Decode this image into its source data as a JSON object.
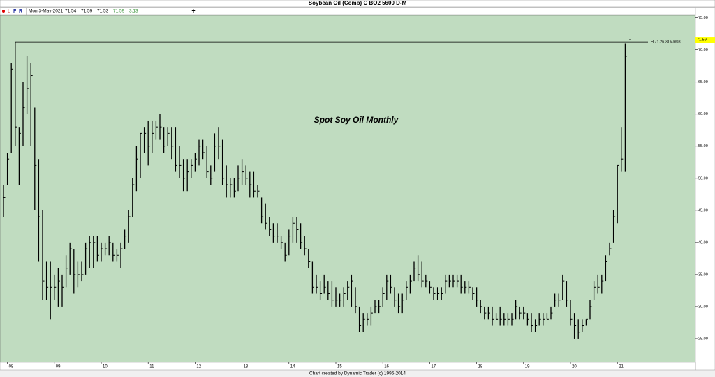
{
  "header": {
    "title": "Soybean Oil (Comb) C BO2 5600 D-M"
  },
  "toolbar": {
    "buttons": [
      "L",
      "F",
      "R"
    ],
    "date": "Mon 3-May-2021",
    "quote": [
      "71.54",
      "71.59",
      "71.53",
      "71.59",
      "3.13"
    ],
    "add": "+"
  },
  "footer": "Chart created by Dynamic Trader  (c) 1996-2014",
  "chart_data": {
    "type": "ohlc",
    "annotation": "Spot Soy Oil Monthly",
    "color": "#000000",
    "background": "#c0dcc0",
    "ylim": [
      21.3,
      75.4
    ],
    "yticks": [
      {
        "value": 25,
        "label": "25.00"
      },
      {
        "value": 30,
        "label": "30.00"
      },
      {
        "value": 35,
        "label": "35.00"
      },
      {
        "value": 40,
        "label": "40.00"
      },
      {
        "value": 45,
        "label": "45.00"
      },
      {
        "value": 50,
        "label": "50.00"
      },
      {
        "value": 55,
        "label": "55.00"
      },
      {
        "value": 60,
        "label": "60.00"
      },
      {
        "value": 65,
        "label": "65.00"
      },
      {
        "value": 70,
        "label": "70.00"
      },
      {
        "value": 75,
        "label": "75.00"
      }
    ],
    "reference_line": {
      "value": 71.26,
      "label": "H 71.26 31Mar08"
    },
    "last_price": {
      "value": 71.59,
      "label": "71.59"
    },
    "categories": [
      null,
      "08",
      null,
      null,
      null,
      null,
      null,
      null,
      null,
      null,
      null,
      null,
      null,
      "09",
      null,
      null,
      null,
      null,
      null,
      null,
      null,
      null,
      null,
      null,
      null,
      "10",
      null,
      null,
      null,
      null,
      null,
      null,
      null,
      null,
      null,
      null,
      null,
      "11",
      null,
      null,
      null,
      null,
      null,
      null,
      null,
      null,
      null,
      null,
      null,
      "12",
      null,
      null,
      null,
      null,
      null,
      null,
      null,
      null,
      null,
      null,
      null,
      "13",
      null,
      null,
      null,
      null,
      null,
      null,
      null,
      null,
      null,
      null,
      null,
      "14",
      null,
      null,
      null,
      null,
      null,
      null,
      null,
      null,
      null,
      null,
      null,
      "15",
      null,
      null,
      null,
      null,
      null,
      null,
      null,
      null,
      null,
      null,
      null,
      "16",
      null,
      null,
      null,
      null,
      null,
      null,
      null,
      null,
      null,
      null,
      null,
      "17",
      null,
      null,
      null,
      null,
      null,
      null,
      null,
      null,
      null,
      null,
      null,
      "18",
      null,
      null,
      null,
      null,
      null,
      null,
      null,
      null,
      null,
      null,
      null,
      "19",
      null,
      null,
      null,
      null,
      null,
      null,
      null,
      null,
      null,
      null,
      null,
      "20",
      null,
      null,
      null,
      null,
      null,
      null,
      null,
      null,
      null,
      null,
      null,
      "21",
      null,
      null,
      null
    ],
    "high": [
      49,
      54,
      68,
      71.26,
      58,
      65,
      69,
      68,
      61,
      53,
      45,
      37,
      37,
      35,
      36,
      35,
      38,
      40,
      39,
      37,
      37,
      40,
      41,
      41,
      41,
      40,
      40,
      41,
      40,
      39,
      40,
      42,
      45,
      50,
      55,
      57,
      58,
      59,
      59,
      59,
      60,
      58,
      58,
      58,
      58,
      55,
      53,
      53,
      53,
      54,
      56,
      56,
      55,
      52,
      57,
      58,
      56,
      52,
      50,
      50,
      52,
      53,
      52,
      51,
      51,
      49,
      47,
      46,
      44,
      43,
      43,
      41,
      40,
      42,
      44,
      44,
      43,
      41,
      39,
      37,
      35,
      34,
      35,
      34,
      34,
      33,
      32,
      33,
      34,
      35,
      33,
      30,
      29,
      29,
      30,
      31,
      31,
      33,
      35,
      35,
      33,
      32,
      32,
      34,
      35,
      37,
      38,
      37,
      35,
      34,
      33,
      33,
      33,
      35,
      35,
      35,
      35,
      35,
      34,
      34,
      33,
      33,
      31,
      30,
      30,
      30,
      29,
      30,
      29,
      29,
      29,
      31,
      30,
      30,
      29,
      29,
      28,
      29,
      29,
      29,
      30,
      32,
      32,
      35,
      34,
      31,
      29,
      28,
      28,
      28,
      31,
      34,
      35,
      35,
      38,
      40,
      45,
      52,
      58,
      71,
      71.59
    ],
    "low": [
      44,
      49,
      54,
      55,
      49,
      55,
      60,
      55,
      45,
      37,
      31,
      31,
      28,
      31,
      30,
      30,
      33,
      35,
      32,
      33,
      34,
      35,
      36,
      36,
      37,
      37,
      38,
      38,
      37,
      37,
      36,
      39,
      40,
      44,
      48,
      50,
      54,
      52,
      54,
      56,
      56,
      54,
      55,
      53,
      51,
      50,
      48,
      48,
      50,
      51,
      52,
      53,
      50,
      49,
      51,
      53,
      49,
      47,
      47,
      47,
      48,
      49,
      49,
      47,
      47,
      47,
      43,
      42,
      41,
      40,
      40,
      39,
      37,
      38,
      40,
      40,
      39,
      38,
      36,
      32,
      32,
      31,
      32,
      31,
      30,
      30,
      30,
      30,
      31,
      30,
      29,
      26,
      26,
      27,
      27,
      29,
      29,
      30,
      31,
      32,
      30,
      29,
      29,
      31,
      32,
      34,
      34,
      33,
      33,
      32,
      31,
      31,
      31,
      32,
      33,
      33,
      33,
      32,
      32,
      32,
      31,
      30,
      29,
      28,
      28,
      27,
      28,
      27,
      27,
      27,
      27,
      28,
      28,
      28,
      27,
      26,
      26,
      27,
      27,
      28,
      28,
      30,
      30,
      31,
      30,
      27,
      25,
      25,
      26,
      27,
      28,
      31,
      32,
      32,
      34,
      38,
      40,
      43,
      51,
      51,
      71.53
    ],
    "close": [
      47,
      53,
      67,
      58,
      57,
      61,
      64,
      66,
      52,
      44,
      34,
      33,
      33,
      33,
      34,
      33,
      36,
      39,
      35,
      35,
      35,
      39,
      40,
      40,
      38,
      39,
      39,
      40,
      38,
      38,
      39,
      41,
      44,
      49,
      53,
      57,
      57,
      55,
      57,
      58,
      58,
      55,
      57,
      55,
      52,
      52,
      50,
      51,
      52,
      53,
      55,
      54,
      51,
      50,
      55,
      55,
      50,
      49,
      49,
      48,
      50,
      51,
      50,
      49,
      48,
      48,
      44,
      43,
      42,
      41,
      41,
      40,
      38,
      41,
      43,
      42,
      40,
      39,
      37,
      33,
      33,
      32,
      33,
      32,
      31,
      31,
      31,
      32,
      33,
      34,
      30,
      27,
      28,
      28,
      29,
      30,
      30,
      32,
      34,
      33,
      31,
      30,
      31,
      33,
      34,
      36,
      35,
      34,
      34,
      33,
      32,
      32,
      32,
      34,
      34,
      34,
      34,
      33,
      33,
      33,
      32,
      31,
      30,
      29,
      29,
      28,
      28,
      28,
      28,
      28,
      28,
      30,
      29,
      29,
      28,
      27,
      27,
      28,
      28,
      28,
      29,
      31,
      31,
      34,
      31,
      28,
      27,
      26,
      27,
      28,
      30,
      33,
      33,
      34,
      37,
      39,
      44,
      52,
      53,
      69,
      71.59
    ]
  }
}
